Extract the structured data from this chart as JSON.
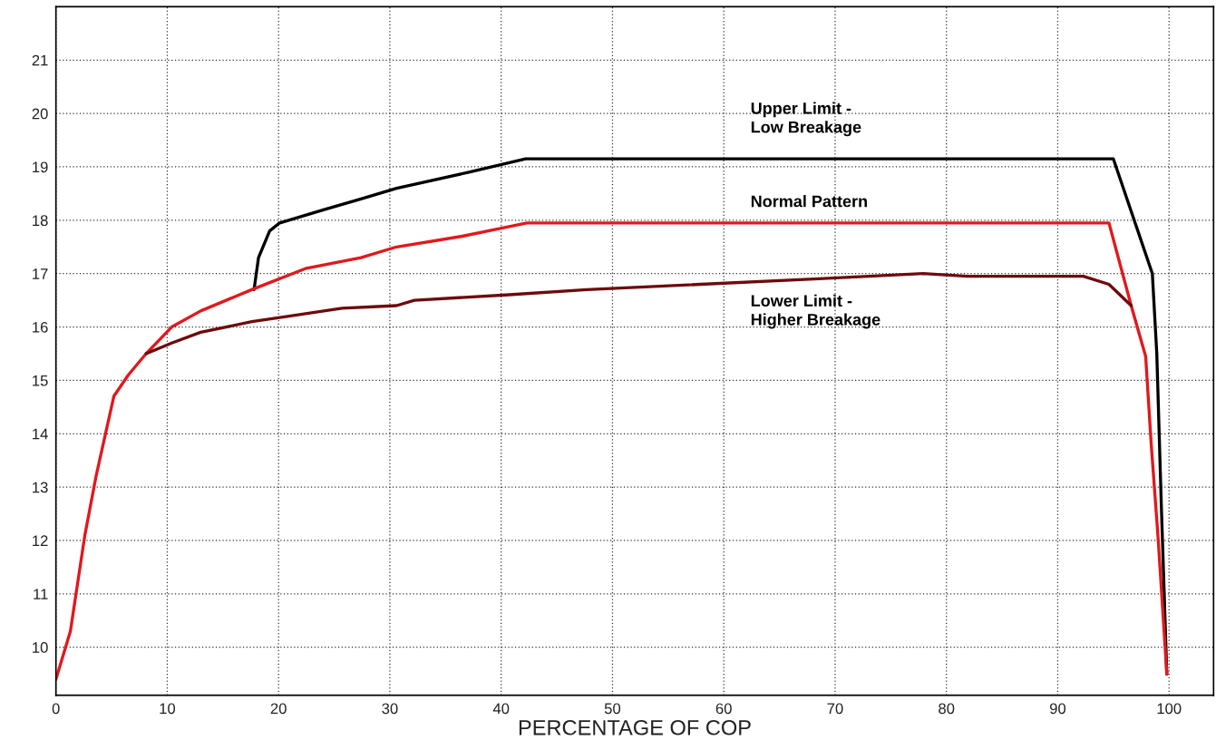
{
  "chart_data": {
    "type": "line",
    "xlabel": "PERCENTAGE OF COP",
    "xlim": [
      0,
      104
    ],
    "ylim": [
      9.1,
      22
    ],
    "xticks": [
      0,
      10,
      20,
      30,
      40,
      50,
      60,
      70,
      80,
      90,
      100
    ],
    "yticks": [
      10,
      11,
      12,
      13,
      14,
      15,
      16,
      17,
      18,
      19,
      20,
      21
    ],
    "grid": true,
    "legend": false,
    "marker": "none",
    "line_style": "solid",
    "series": [
      {
        "name": "Upper Limit -\nLow Breakage",
        "color": "#000000",
        "x": [
          17.8,
          18.2,
          19.2,
          20.1,
          24.1,
          27.4,
          30.6,
          37.1,
          42.2,
          95.0,
          98.5,
          98.9,
          99.3,
          99.8
        ],
        "values": [
          16.7,
          17.3,
          17.8,
          17.95,
          18.2,
          18.4,
          18.6,
          18.9,
          19.15,
          19.15,
          17.0,
          15.5,
          12.7,
          9.5
        ]
      },
      {
        "name": "Normal Pattern",
        "color": "#e2181c",
        "x": [
          0,
          1.3,
          2.6,
          3.6,
          5.2,
          6.5,
          8.1,
          10.4,
          13.0,
          17.6,
          22.5,
          27.4,
          30.6,
          36.5,
          42.3,
          94.6,
          96.6,
          97.9,
          98.4,
          99.0,
          99.8
        ],
        "values": [
          9.4,
          10.3,
          12.1,
          13.2,
          14.7,
          15.1,
          15.5,
          16.0,
          16.3,
          16.7,
          17.1,
          17.3,
          17.5,
          17.7,
          17.95,
          17.95,
          16.4,
          15.45,
          13.8,
          12.1,
          9.5
        ]
      },
      {
        "name": "Lower Limit -\nHigher Breakage",
        "color": "#6e0a0c",
        "x": [
          8.1,
          10.4,
          13.0,
          17.6,
          20.8,
          25.7,
          30.6,
          32.2,
          40.4,
          47.7,
          68.1,
          77.9,
          81.9,
          92.3,
          94.6,
          96.6
        ],
        "values": [
          15.5,
          15.7,
          15.9,
          16.1,
          16.2,
          16.35,
          16.4,
          16.5,
          16.6,
          16.7,
          16.9,
          17.0,
          16.95,
          16.95,
          16.8,
          16.4
        ]
      }
    ]
  }
}
